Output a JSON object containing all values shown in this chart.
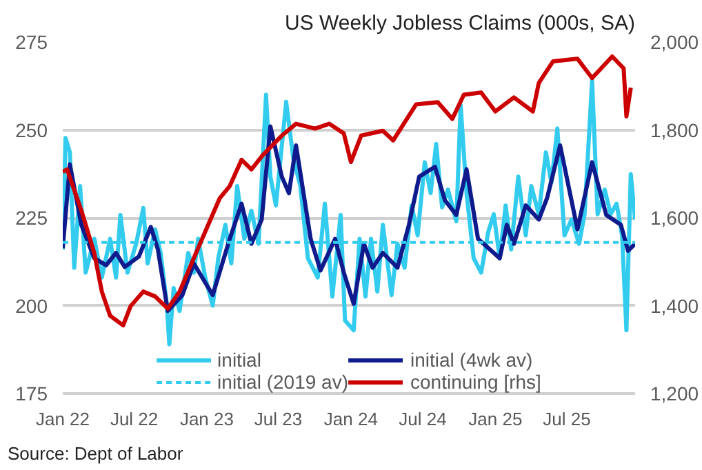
{
  "chart_data": {
    "type": "line",
    "title": "US Weekly Jobless Claims (000s, SA)",
    "annotations": [
      "Source: Dept of Labor"
    ],
    "xlim": [
      "2022-01-01",
      "2025-12-21"
    ],
    "xticks": [
      {
        "value": "2022-01-01",
        "label": "Jan 22"
      },
      {
        "value": "2022-07-01",
        "label": "Jul 22"
      },
      {
        "value": "2023-01-01",
        "label": "Jan 23"
      },
      {
        "value": "2023-07-01",
        "label": "Jul 23"
      },
      {
        "value": "2024-01-01",
        "label": "Jan 24"
      },
      {
        "value": "2024-07-01",
        "label": "Jul 24"
      },
      {
        "value": "2025-01-01",
        "label": "Jan 25"
      },
      {
        "value": "2025-07-01",
        "label": "Jul 25"
      }
    ],
    "ylim": [
      175,
      275
    ],
    "yticks": [
      175,
      200,
      225,
      250,
      275
    ],
    "y2lim": [
      1200,
      2000
    ],
    "y2ticks": [
      {
        "value": 1200,
        "label": "1,200"
      },
      {
        "value": 1400,
        "label": "1,400"
      },
      {
        "value": 1600,
        "label": "1,600"
      },
      {
        "value": 1800,
        "label": "1,800"
      },
      {
        "value": 2000,
        "label": "2,000"
      }
    ],
    "grid": "y",
    "legend": "bottom",
    "series": [
      {
        "name": "initial",
        "color": "#33ccee",
        "line_style": "solid",
        "x": [
          "2022-01-01",
          "2022-01-08",
          "2022-01-19",
          "2022-01-30",
          "2022-02-14",
          "2022-02-28",
          "2022-03-22",
          "2022-04-10",
          "2022-05-01",
          "2022-05-16",
          "2022-05-27",
          "2022-06-14",
          "2022-07-06",
          "2022-07-24",
          "2022-08-04",
          "2022-08-23",
          "2022-09-06",
          "2022-09-21",
          "2022-09-28",
          "2022-10-09",
          "2022-10-24",
          "2022-11-15",
          "2022-11-29",
          "2022-12-10",
          "2022-12-28",
          "2023-01-16",
          "2023-01-30",
          "2023-02-17",
          "2023-03-04",
          "2023-03-19",
          "2023-04-06",
          "2023-04-24",
          "2023-05-12",
          "2023-05-31",
          "2023-06-11",
          "2023-06-25",
          "2023-07-21",
          "2023-08-08",
          "2023-08-26",
          "2023-09-14",
          "2023-10-09",
          "2023-10-27",
          "2023-11-15",
          "2023-12-06",
          "2023-12-17",
          "2024-01-08",
          "2024-01-23",
          "2024-02-07",
          "2024-02-21",
          "2024-03-08",
          "2024-03-22",
          "2024-04-13",
          "2024-04-28",
          "2024-05-16",
          "2024-06-03",
          "2024-06-18",
          "2024-07-06",
          "2024-07-21",
          "2024-08-04",
          "2024-08-19",
          "2024-09-03",
          "2024-09-24",
          "2024-10-05",
          "2024-10-20",
          "2024-11-07",
          "2024-11-26",
          "2024-12-14",
          "2024-12-28",
          "2025-01-12",
          "2025-01-27",
          "2025-02-10",
          "2025-02-28",
          "2025-03-19",
          "2025-04-02",
          "2025-04-21",
          "2025-05-09",
          "2025-05-23",
          "2025-06-07",
          "2025-06-25",
          "2025-07-13",
          "2025-08-01",
          "2025-08-15",
          "2025-09-03",
          "2025-09-17",
          "2025-10-05",
          "2025-10-20",
          "2025-11-04",
          "2025-11-18",
          "2025-11-29",
          "2025-12-10",
          "2025-12-21"
        ],
        "values": [
          216,
          247.7,
          243.6,
          210.8,
          234,
          209.4,
          219,
          208,
          219,
          208,
          225.8,
          209.4,
          217.6,
          227.8,
          212,
          221.7,
          215,
          201,
          189,
          205,
          198.5,
          215,
          209.4,
          219,
          208,
          200,
          213.5,
          223,
          212,
          234,
          219,
          227,
          217.6,
          260,
          236.7,
          228.5,
          258,
          242,
          234,
          213.5,
          208,
          229,
          202.6,
          225.8,
          195.8,
          193,
          219,
          202.6,
          219,
          204,
          223,
          203,
          217.6,
          210.8,
          228.5,
          220,
          240.8,
          232,
          246,
          228,
          233,
          224,
          257,
          232,
          213.5,
          209.4,
          221,
          226,
          213.5,
          228.5,
          216,
          236.7,
          220,
          234,
          226,
          243.6,
          235,
          250.4,
          220,
          224.5,
          217.6,
          226,
          264,
          226,
          233,
          226,
          229,
          220,
          193,
          237.4,
          224.5
        ]
      },
      {
        "name": "initial (4wk av)",
        "color": "#0f1a8c",
        "line_style": "solid",
        "x": [
          "2022-01-01",
          "2022-01-19",
          "2022-02-17",
          "2022-03-22",
          "2022-04-21",
          "2022-05-16",
          "2022-06-07",
          "2022-07-13",
          "2022-08-12",
          "2022-08-30",
          "2022-09-24",
          "2022-10-31",
          "2022-11-29",
          "2023-01-16",
          "2023-02-28",
          "2023-03-30",
          "2023-04-24",
          "2023-05-20",
          "2023-06-11",
          "2023-07-10",
          "2023-07-28",
          "2023-08-15",
          "2023-09-21",
          "2023-10-16",
          "2023-11-22",
          "2023-12-14",
          "2024-01-08",
          "2024-02-03",
          "2024-02-25",
          "2024-03-22",
          "2024-04-28",
          "2024-05-27",
          "2024-06-22",
          "2024-08-01",
          "2024-08-26",
          "2024-09-24",
          "2024-10-20",
          "2024-11-18",
          "2025-01-12",
          "2025-01-30",
          "2025-02-17",
          "2025-03-19",
          "2025-04-21",
          "2025-05-12",
          "2025-06-14",
          "2025-07-28",
          "2025-09-03",
          "2025-10-09",
          "2025-11-15",
          "2025-12-03",
          "2025-12-21"
        ],
        "values": [
          216.3,
          240.2,
          223,
          213.5,
          211.5,
          215,
          211,
          214,
          222.4,
          216,
          198.5,
          203,
          212,
          203,
          219,
          229,
          217.6,
          224.5,
          251,
          236.7,
          232,
          245.6,
          219,
          210,
          219,
          209.4,
          200.5,
          217.6,
          210.8,
          215,
          210.8,
          223,
          236.7,
          239.5,
          230,
          225.8,
          238.8,
          219,
          213.5,
          223,
          217.6,
          228.5,
          224.5,
          230.6,
          245.6,
          221.7,
          240.8,
          225.8,
          223,
          215.6,
          217.6
        ]
      },
      {
        "name": "initial (2019 av)",
        "color": "#33ccee",
        "line_style": "dashed",
        "x": [
          "2022-01-01",
          "2025-12-21"
        ],
        "values": [
          218,
          218
        ]
      },
      {
        "name": "continuing [rhs]",
        "color": "#cc0000",
        "line_style": "solid",
        "axis": "y2",
        "x": [
          "2022-01-01",
          "2022-01-12",
          "2022-02-17",
          "2022-03-22",
          "2022-04-10",
          "2022-05-01",
          "2022-06-03",
          "2022-06-22",
          "2022-07-24",
          "2022-08-23",
          "2022-09-24",
          "2022-10-24",
          "2022-11-29",
          "2023-01-05",
          "2023-02-03",
          "2023-02-28",
          "2023-03-30",
          "2023-04-24",
          "2023-05-23",
          "2023-07-10",
          "2023-08-15",
          "2023-10-02",
          "2023-11-07",
          "2023-12-14",
          "2024-01-01",
          "2024-01-27",
          "2024-03-22",
          "2024-04-17",
          "2024-06-14",
          "2024-08-08",
          "2024-09-14",
          "2024-10-13",
          "2024-11-26",
          "2025-01-01",
          "2025-02-17",
          "2025-04-06",
          "2025-04-21",
          "2025-05-27",
          "2025-07-28",
          "2025-09-03",
          "2025-10-24",
          "2025-11-22",
          "2025-11-29",
          "2025-12-10"
        ],
        "values": [
          1705,
          1710,
          1617,
          1519,
          1432,
          1377,
          1355,
          1399,
          1432,
          1421,
          1393,
          1432,
          1508,
          1585,
          1645,
          1672,
          1732,
          1710,
          1743,
          1787,
          1814,
          1803,
          1814,
          1792,
          1727,
          1787,
          1798,
          1776,
          1858,
          1863,
          1825,
          1880,
          1885,
          1842,
          1874,
          1842,
          1907,
          1956,
          1962,
          1918,
          1967,
          1940,
          1831,
          1896
        ]
      }
    ]
  }
}
